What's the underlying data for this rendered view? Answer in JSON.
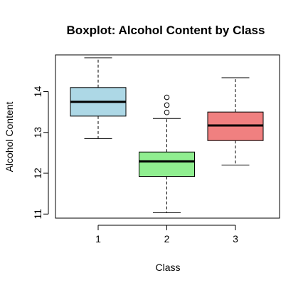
{
  "chart_data": {
    "type": "boxplot",
    "title": "Boxplot: Alcohol Content by Class",
    "xlabel": "Class",
    "ylabel": "Alcohol Content",
    "ylim": [
      10.9,
      14.9
    ],
    "yticks": [
      11,
      12,
      13,
      14
    ],
    "categories": [
      "1",
      "2",
      "3"
    ],
    "boxes": [
      {
        "category": "1",
        "whisker_low": 12.85,
        "q1": 13.4,
        "median": 13.75,
        "q3": 14.1,
        "whisker_high": 14.83,
        "outliers": [],
        "fill": "#add8e6"
      },
      {
        "category": "2",
        "whisker_low": 11.03,
        "q1": 11.92,
        "median": 12.29,
        "q3": 12.52,
        "whisker_high": 13.34,
        "outliers": [
          13.49,
          13.67,
          13.86
        ],
        "fill": "#90ee90"
      },
      {
        "category": "3",
        "whisker_low": 12.2,
        "q1": 12.8,
        "median": 13.17,
        "q3": 13.5,
        "whisker_high": 14.34,
        "outliers": [],
        "fill": "#f08080"
      }
    ]
  }
}
